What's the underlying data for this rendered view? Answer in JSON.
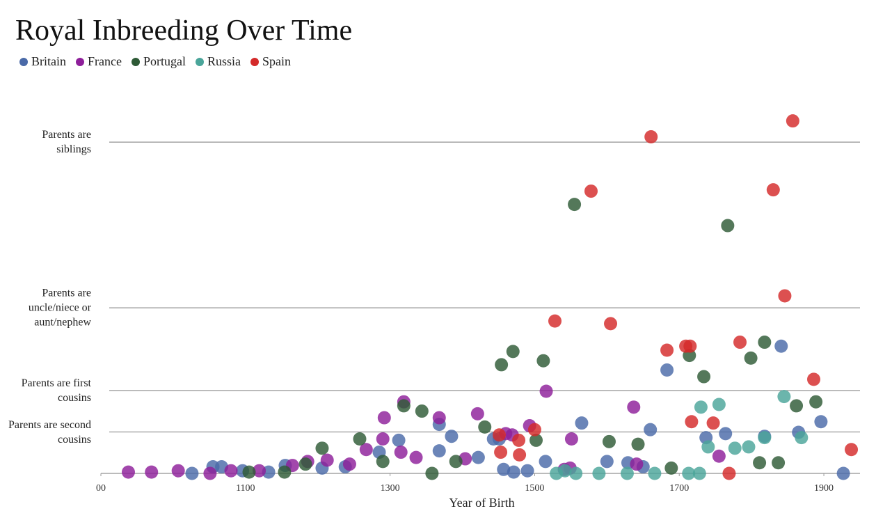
{
  "chart_data": {
    "type": "scatter",
    "title": "Royal Inbreeding Over Time",
    "x_label": "Year of Birth",
    "xlim": [
      900,
      1950
    ],
    "xticks": [
      {
        "value": 900,
        "label": "00"
      },
      1100,
      1300,
      1500,
      1700,
      1900
    ],
    "ylim": [
      0,
      0.29
    ],
    "yticks": [
      {
        "value": 0.03125,
        "label": "Parents are second cousins"
      },
      {
        "value": 0.0625,
        "label": "Parents are first cousins"
      },
      {
        "value": 0.125,
        "label": "Parents are uncle/niece or aunt/nephew"
      },
      {
        "value": 0.25,
        "label": "Parents are siblings"
      }
    ],
    "grid": true,
    "legend": "top-left",
    "series": [
      {
        "name": "Britain",
        "color": "#4a6aa8",
        "x": [
          1026,
          1055,
          1067,
          1096,
          1132,
          1155,
          1206,
          1238,
          1285,
          1312,
          1368,
          1368,
          1385,
          1422,
          1443,
          1451,
          1457,
          1471,
          1490,
          1515,
          1565,
          1600,
          1629,
          1650,
          1660,
          1683,
          1737,
          1764,
          1818,
          1841,
          1865,
          1896,
          1927
        ],
        "values": [
          0,
          0.005,
          0.005,
          0.002,
          0.001,
          0.006,
          0.004,
          0.005,
          0.016,
          0.025,
          0.037,
          0.017,
          0.028,
          0.012,
          0.026,
          0.026,
          0.003,
          0.001,
          0.002,
          0.009,
          0.038,
          0.009,
          0.008,
          0.005,
          0.033,
          0.078,
          0.027,
          0.03,
          0.028,
          0.096,
          0.031,
          0.039,
          0
        ]
      },
      {
        "name": "France",
        "color": "#8e1f9a",
        "x": [
          938,
          970,
          1007,
          1051,
          1080,
          1119,
          1165,
          1186,
          1213,
          1244,
          1267,
          1290,
          1292,
          1315,
          1319,
          1336,
          1368,
          1404,
          1421,
          1460,
          1469,
          1493,
          1516,
          1541,
          1549,
          1551,
          1637,
          1641,
          1755
        ],
        "values": [
          0.001,
          0.001,
          0.002,
          0,
          0.002,
          0.002,
          0.006,
          0.009,
          0.01,
          0.007,
          0.018,
          0.026,
          0.042,
          0.016,
          0.054,
          0.012,
          0.042,
          0.011,
          0.045,
          0.03,
          0.029,
          0.036,
          0.062,
          0.003,
          0.004,
          0.026,
          0.05,
          0.007,
          0.013
        ]
      },
      {
        "name": "Portugal",
        "color": "#2e5a36",
        "x": [
          1105,
          1154,
          1183,
          1206,
          1258,
          1290,
          1319,
          1344,
          1358,
          1391,
          1431,
          1454,
          1470,
          1502,
          1512,
          1555,
          1603,
          1643,
          1689,
          1714,
          1734,
          1767,
          1799,
          1811,
          1818,
          1837,
          1862,
          1889
        ],
        "values": [
          0.001,
          0.001,
          0.007,
          0.019,
          0.026,
          0.009,
          0.051,
          0.047,
          0,
          0.009,
          0.035,
          0.082,
          0.092,
          0.025,
          0.085,
          0.203,
          0.024,
          0.022,
          0.004,
          0.089,
          0.073,
          0.187,
          0.087,
          0.008,
          0.099,
          0.008,
          0.051,
          0.054
        ]
      },
      {
        "name": "Russia",
        "color": "#4aa59a",
        "x": [
          1530,
          1542,
          1557,
          1589,
          1628,
          1666,
          1713,
          1728,
          1730,
          1740,
          1755,
          1777,
          1796,
          1818,
          1845,
          1869
        ],
        "values": [
          0,
          0.002,
          0,
          0,
          0,
          0,
          0,
          0,
          0.05,
          0.02,
          0.052,
          0.019,
          0.02,
          0.027,
          0.058,
          0.027
        ]
      },
      {
        "name": "Spain",
        "color": "#d42a2a",
        "x": [
          1451,
          1453,
          1478,
          1479,
          1500,
          1528,
          1578,
          1605,
          1661,
          1683,
          1709,
          1715,
          1717,
          1747,
          1769,
          1784,
          1830,
          1846,
          1857,
          1886,
          1938
        ],
        "values": [
          0.029,
          0.016,
          0.025,
          0.014,
          0.033,
          0.115,
          0.213,
          0.113,
          0.254,
          0.093,
          0.096,
          0.096,
          0.039,
          0.038,
          0,
          0.099,
          0.214,
          0.134,
          0.266,
          0.071,
          0.018
        ]
      }
    ]
  }
}
